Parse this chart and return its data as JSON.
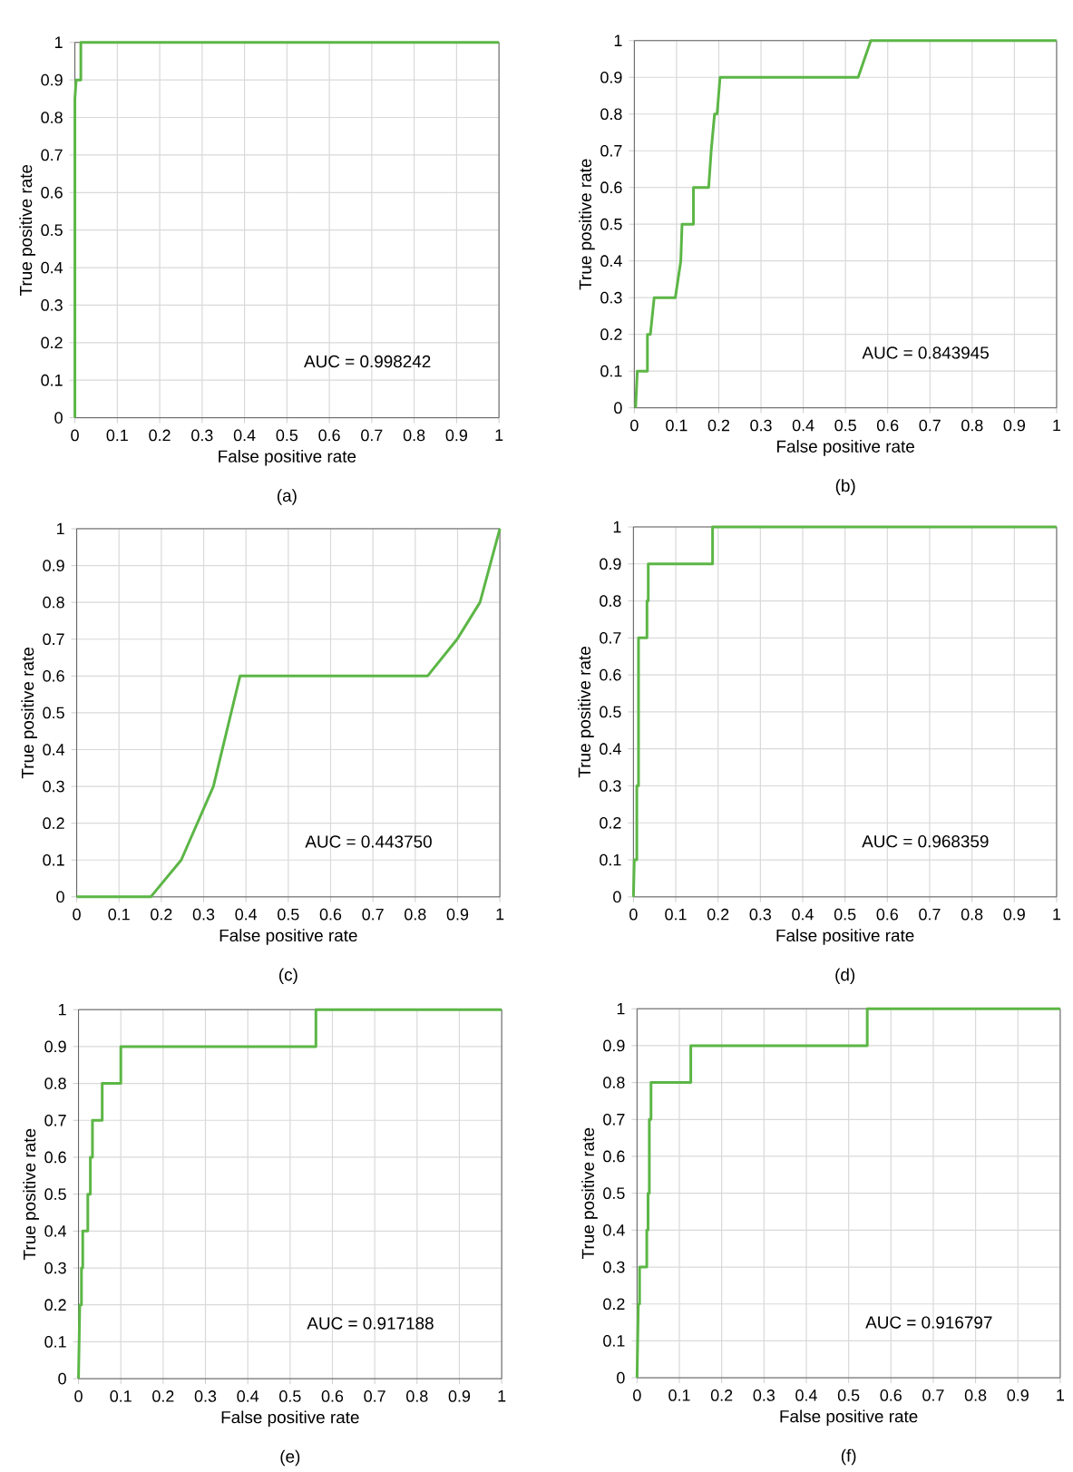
{
  "chart_data": [
    {
      "type": "line",
      "xlabel": "False positive rate",
      "ylabel": "True positive rate",
      "annotations": [
        "AUC = 0.998242",
        "(a)"
      ],
      "xlim": [
        0,
        1
      ],
      "ylim": [
        0,
        1
      ],
      "xticks": [
        0,
        0.1,
        0.2,
        0.3,
        0.4,
        0.5,
        0.6,
        0.7,
        0.8,
        0.9,
        1
      ],
      "yticks": [
        0,
        0.1,
        0.2,
        0.3,
        0.4,
        0.5,
        0.6,
        0.7,
        0.8,
        0.9,
        1
      ],
      "grid": true,
      "line_style": "solid",
      "marker": "none",
      "series": [
        {
          "color": "#5cb646",
          "x": [
            0,
            0,
            0.003,
            0.014,
            0.014,
            1
          ],
          "values": [
            0,
            0.85,
            0.9,
            0.9,
            1,
            1
          ]
        }
      ]
    },
    {
      "type": "line",
      "xlabel": "False positive rate",
      "ylabel": "True positive rate",
      "annotations": [
        "AUC = 0.843945",
        "(b)"
      ],
      "xlim": [
        0,
        1
      ],
      "ylim": [
        0,
        1
      ],
      "xticks": [
        0,
        0.1,
        0.2,
        0.3,
        0.4,
        0.5,
        0.6,
        0.7,
        0.8,
        0.9,
        1
      ],
      "yticks": [
        0,
        0.1,
        0.2,
        0.3,
        0.4,
        0.5,
        0.6,
        0.7,
        0.8,
        0.9,
        1
      ],
      "grid": true,
      "line_style": "solid",
      "marker": "none",
      "series": [
        {
          "color": "#5cb646",
          "x": [
            0.003,
            0.007,
            0.031,
            0.031,
            0.038,
            0.047,
            0.097,
            0.11,
            0.113,
            0.14,
            0.14,
            0.176,
            0.182,
            0.19,
            0.196,
            0.203,
            0.53,
            0.56,
            1
          ],
          "values": [
            0,
            0.1,
            0.1,
            0.2,
            0.2,
            0.3,
            0.3,
            0.4,
            0.5,
            0.5,
            0.6,
            0.6,
            0.7,
            0.8,
            0.8,
            0.9,
            0.9,
            1,
            1
          ]
        }
      ]
    },
    {
      "type": "line",
      "xlabel": "False positive rate",
      "ylabel": "True positive rate",
      "annotations": [
        "AUC = 0.443750",
        "(c)"
      ],
      "xlim": [
        0,
        1
      ],
      "ylim": [
        0,
        1
      ],
      "xticks": [
        0,
        0.1,
        0.2,
        0.3,
        0.4,
        0.5,
        0.6,
        0.7,
        0.8,
        0.9,
        1
      ],
      "yticks": [
        0,
        0.1,
        0.2,
        0.3,
        0.4,
        0.5,
        0.6,
        0.7,
        0.8,
        0.9,
        1
      ],
      "grid": true,
      "line_style": "solid",
      "marker": "none",
      "series": [
        {
          "color": "#5cb646",
          "x": [
            0,
            0.175,
            0.247,
            0.323,
            0.386,
            0.829,
            0.899,
            0.953,
            1
          ],
          "values": [
            0,
            0,
            0.1,
            0.3,
            0.6,
            0.6,
            0.7,
            0.8,
            1
          ]
        }
      ]
    },
    {
      "type": "line",
      "xlabel": "False positive rate",
      "ylabel": "True positive rate",
      "annotations": [
        "AUC = 0.968359",
        "(d)"
      ],
      "xlim": [
        0,
        1
      ],
      "ylim": [
        0,
        1
      ],
      "xticks": [
        0,
        0.1,
        0.2,
        0.3,
        0.4,
        0.5,
        0.6,
        0.7,
        0.8,
        0.9,
        1
      ],
      "yticks": [
        0,
        0.1,
        0.2,
        0.3,
        0.4,
        0.5,
        0.6,
        0.7,
        0.8,
        0.9,
        1
      ],
      "grid": true,
      "line_style": "solid",
      "marker": "none",
      "series": [
        {
          "color": "#5cb646",
          "x": [
            0,
            0.002,
            0.008,
            0.008,
            0.012,
            0.012,
            0.032,
            0.032,
            0.035,
            0.035,
            0.187,
            0.187,
            1
          ],
          "values": [
            0,
            0.1,
            0.1,
            0.3,
            0.3,
            0.7,
            0.7,
            0.8,
            0.8,
            0.9,
            0.9,
            1,
            1
          ]
        }
      ]
    },
    {
      "type": "line",
      "xlabel": "False positive rate",
      "ylabel": "True positive rate",
      "annotations": [
        "AUC = 0.917188",
        "(e)"
      ],
      "xlim": [
        0,
        1
      ],
      "ylim": [
        0,
        1
      ],
      "xticks": [
        0,
        0.1,
        0.2,
        0.3,
        0.4,
        0.5,
        0.6,
        0.7,
        0.8,
        0.9,
        1
      ],
      "yticks": [
        0,
        0.1,
        0.2,
        0.3,
        0.4,
        0.5,
        0.6,
        0.7,
        0.8,
        0.9,
        1
      ],
      "grid": true,
      "line_style": "solid",
      "marker": "none",
      "series": [
        {
          "color": "#5cb646",
          "x": [
            0,
            0.003,
            0.007,
            0.007,
            0.01,
            0.01,
            0.022,
            0.022,
            0.028,
            0.028,
            0.033,
            0.033,
            0.056,
            0.056,
            0.1,
            0.1,
            0.561,
            0.561,
            1
          ],
          "values": [
            0,
            0.2,
            0.2,
            0.3,
            0.3,
            0.4,
            0.4,
            0.5,
            0.5,
            0.6,
            0.6,
            0.7,
            0.7,
            0.8,
            0.8,
            0.9,
            0.9,
            1,
            1
          ]
        }
      ]
    },
    {
      "type": "line",
      "xlabel": "False positive rate",
      "ylabel": "True positive rate",
      "annotations": [
        "AUC = 0.916797",
        "(f)"
      ],
      "xlim": [
        0,
        1
      ],
      "ylim": [
        0,
        1
      ],
      "xticks": [
        0,
        0.1,
        0.2,
        0.3,
        0.4,
        0.5,
        0.6,
        0.7,
        0.8,
        0.9,
        1
      ],
      "yticks": [
        0,
        0.1,
        0.2,
        0.3,
        0.4,
        0.5,
        0.6,
        0.7,
        0.8,
        0.9,
        1
      ],
      "grid": true,
      "line_style": "solid",
      "marker": "none",
      "series": [
        {
          "color": "#5cb646",
          "x": [
            0,
            0.003,
            0.006,
            0.006,
            0.023,
            0.023,
            0.026,
            0.026,
            0.029,
            0.029,
            0.033,
            0.033,
            0.127,
            0.127,
            0.544,
            0.544,
            1
          ],
          "values": [
            0,
            0.2,
            0.2,
            0.3,
            0.3,
            0.4,
            0.4,
            0.5,
            0.5,
            0.7,
            0.7,
            0.8,
            0.8,
            0.9,
            0.9,
            1,
            1
          ]
        }
      ]
    }
  ]
}
